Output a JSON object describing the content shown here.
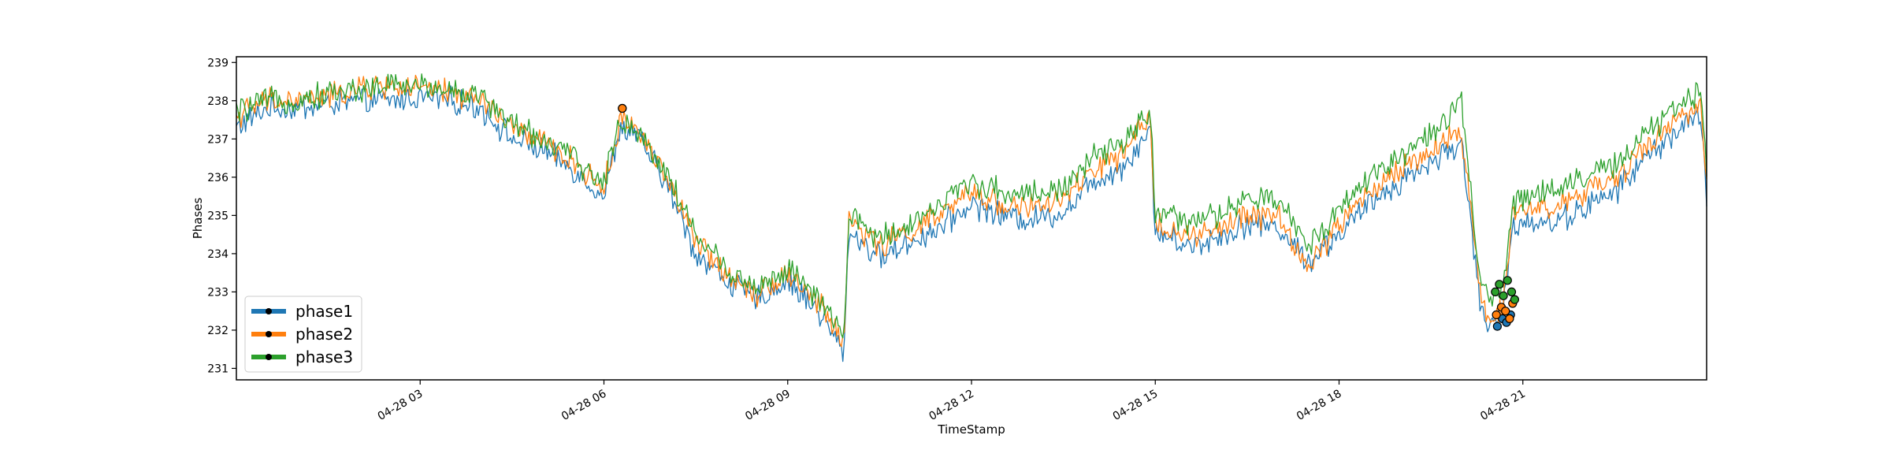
{
  "chart_data": {
    "type": "line",
    "title": "",
    "xlabel": "TimeStamp",
    "ylabel": "Phases",
    "x_range": [
      "04-28 00:00",
      "04-28 24:00"
    ],
    "ylim": [
      230.7,
      239.15
    ],
    "y_ticks": [
      231,
      232,
      233,
      234,
      235,
      236,
      237,
      238,
      239
    ],
    "y_tick_labels": [
      "231",
      "232",
      "233",
      "234",
      "235",
      "236",
      "237",
      "238",
      "239"
    ],
    "x_ticks": [
      "04-28 03:00",
      "04-28 06:00",
      "04-28 09:00",
      "04-28 12:00",
      "04-28 15:00",
      "04-28 18:00",
      "04-28 21:00"
    ],
    "x_tick_labels": [
      "04-28 03",
      "04-28 06",
      "04-28 09",
      "04-28 12",
      "04-28 15",
      "04-28 18",
      "04-28 21"
    ],
    "grid": false,
    "legend_position": "lower-left",
    "series": [
      {
        "name": "phase1",
        "color": "#1f77b4",
        "x": [
          "00:00",
          "00:30",
          "01:00",
          "01:30",
          "02:00",
          "02:30",
          "03:00",
          "03:30",
          "04:00",
          "04:30",
          "05:00",
          "05:30",
          "06:00",
          "06:15",
          "06:30",
          "07:00",
          "07:30",
          "08:00",
          "08:30",
          "09:00",
          "09:30",
          "09:55",
          "10:00",
          "10:30",
          "11:00",
          "11:30",
          "12:00",
          "12:30",
          "13:00",
          "13:30",
          "14:00",
          "14:30",
          "14:55",
          "15:00",
          "15:30",
          "16:00",
          "16:30",
          "17:00",
          "17:30",
          "18:00",
          "18:30",
          "19:00",
          "19:30",
          "20:00",
          "20:15",
          "20:20",
          "20:30",
          "20:40",
          "20:50",
          "21:00",
          "21:30",
          "22:00",
          "22:30",
          "23:00",
          "23:30",
          "23:55",
          "24:00"
        ],
        "values": [
          237.3,
          237.8,
          237.8,
          237.9,
          238.0,
          238.0,
          238.1,
          238.0,
          237.8,
          237.0,
          236.7,
          236.2,
          235.5,
          237.2,
          237.2,
          235.9,
          234.0,
          233.3,
          232.8,
          233.3,
          232.5,
          231.4,
          234.6,
          233.9,
          234.3,
          234.7,
          235.3,
          235.0,
          234.9,
          235.1,
          235.9,
          236.3,
          237.3,
          234.6,
          234.2,
          234.4,
          234.8,
          234.7,
          233.8,
          234.5,
          235.3,
          235.9,
          236.4,
          236.9,
          233.5,
          232.3,
          232.1,
          232.3,
          234.7,
          234.9,
          234.8,
          235.2,
          235.6,
          236.5,
          237.2,
          237.6,
          235.5
        ]
      },
      {
        "name": "phase2",
        "color": "#ff7f0e",
        "x": [
          "00:00",
          "00:30",
          "01:00",
          "01:30",
          "02:00",
          "02:30",
          "03:00",
          "03:30",
          "04:00",
          "04:30",
          "05:00",
          "05:30",
          "06:00",
          "06:15",
          "06:30",
          "07:00",
          "07:30",
          "08:00",
          "08:30",
          "09:00",
          "09:30",
          "09:55",
          "10:00",
          "10:30",
          "11:00",
          "11:30",
          "12:00",
          "12:30",
          "13:00",
          "13:30",
          "14:00",
          "14:30",
          "14:55",
          "15:00",
          "15:30",
          "16:00",
          "16:30",
          "17:00",
          "17:30",
          "18:00",
          "18:30",
          "19:00",
          "19:30",
          "20:00",
          "20:15",
          "20:20",
          "20:30",
          "20:40",
          "20:50",
          "21:00",
          "21:30",
          "22:00",
          "22:30",
          "23:00",
          "23:30",
          "23:55",
          "24:00"
        ],
        "values": [
          237.6,
          238.0,
          238.0,
          238.1,
          238.3,
          238.4,
          238.3,
          238.2,
          238.0,
          237.3,
          236.9,
          236.4,
          235.7,
          237.4,
          237.4,
          236.1,
          234.3,
          233.5,
          233.0,
          233.5,
          232.7,
          231.7,
          234.9,
          234.2,
          234.6,
          235.0,
          235.6,
          235.3,
          235.2,
          235.4,
          236.2,
          236.6,
          237.6,
          234.9,
          234.4,
          234.6,
          235.0,
          235.0,
          233.6,
          234.8,
          235.6,
          236.2,
          236.7,
          237.2,
          233.8,
          232.6,
          232.4,
          232.6,
          235.0,
          235.2,
          235.2,
          235.6,
          235.9,
          236.8,
          237.5,
          237.9,
          235.8
        ]
      },
      {
        "name": "phase3",
        "color": "#2ca02c",
        "x": [
          "00:00",
          "00:30",
          "01:00",
          "01:30",
          "02:00",
          "02:30",
          "03:00",
          "03:30",
          "04:00",
          "04:30",
          "05:00",
          "05:30",
          "06:00",
          "06:15",
          "06:30",
          "07:00",
          "07:30",
          "08:00",
          "08:30",
          "09:00",
          "09:30",
          "09:55",
          "10:00",
          "10:30",
          "11:00",
          "11:30",
          "12:00",
          "12:30",
          "13:00",
          "13:30",
          "14:00",
          "14:30",
          "14:55",
          "15:00",
          "15:30",
          "16:00",
          "16:30",
          "17:00",
          "17:30",
          "18:00",
          "18:30",
          "19:00",
          "19:30",
          "20:00",
          "20:15",
          "20:20",
          "20:30",
          "20:40",
          "20:50",
          "21:00",
          "21:30",
          "22:00",
          "22:30",
          "23:00",
          "23:30",
          "23:55",
          "24:00"
        ],
        "values": [
          237.7,
          238.0,
          238.0,
          238.2,
          238.3,
          238.4,
          238.4,
          238.3,
          238.1,
          237.4,
          237.0,
          236.5,
          235.8,
          237.5,
          237.3,
          236.2,
          234.5,
          233.6,
          233.1,
          233.6,
          232.8,
          231.8,
          235.0,
          234.4,
          234.8,
          235.3,
          235.9,
          235.6,
          235.6,
          235.7,
          236.5,
          236.9,
          237.8,
          235.1,
          234.8,
          235.0,
          235.4,
          235.4,
          234.2,
          235.2,
          236.0,
          236.6,
          237.1,
          237.9,
          234.0,
          233.0,
          232.9,
          233.0,
          235.3,
          235.5,
          235.7,
          236.0,
          236.3,
          237.1,
          237.8,
          238.3,
          236.0
        ]
      }
    ],
    "markers": [
      {
        "series": "phase1",
        "x": [
          "06:18",
          "20:35",
          "20:40",
          "20:44",
          "20:48"
        ],
        "values": [
          237.8,
          232.1,
          232.3,
          232.2,
          232.4
        ]
      },
      {
        "series": "phase2",
        "x": [
          "06:18",
          "20:34",
          "20:39",
          "20:43",
          "20:47",
          "20:50"
        ],
        "values": [
          237.8,
          232.4,
          232.6,
          232.5,
          232.3,
          232.7
        ]
      },
      {
        "series": "phase3",
        "x": [
          "20:33",
          "20:37",
          "20:41",
          "20:45",
          "20:49",
          "20:52"
        ],
        "values": [
          233.0,
          233.2,
          232.9,
          233.3,
          233.0,
          232.8
        ]
      }
    ]
  }
}
